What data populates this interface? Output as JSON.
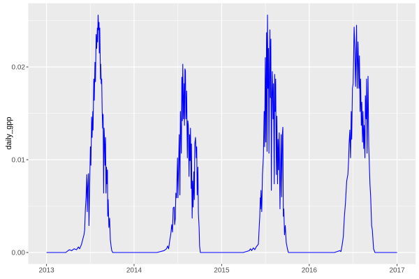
{
  "chart_data": {
    "type": "line",
    "title": "",
    "xlabel": "",
    "ylabel": "daily_gpp",
    "legend": "none",
    "theme": "ggplot2-grey",
    "x_unit": "days since 2013-01-01 (date axis)",
    "xlim_days": [
      -76,
      1538
    ],
    "ylim": [
      -0.0012,
      0.0269
    ],
    "x_ticks_days": [
      0,
      365,
      730,
      1095,
      1461
    ],
    "x_tick_labels": [
      "2013",
      "2014",
      "2015",
      "2016",
      "2017"
    ],
    "x_minor_ticks_days": [
      182.5,
      547.5,
      912.5,
      1278
    ],
    "y_ticks": [
      0,
      0.01,
      0.02
    ],
    "y_tick_labels": [
      "0.00",
      "0.01",
      "0.02"
    ],
    "y_minor_ticks": [
      0.005,
      0.015,
      0.025
    ],
    "grid": "major+minor",
    "colors": {
      "panel_background": "#EBEBEB",
      "grid_line": "#FFFFFF",
      "axis_text": "#4D4D4D",
      "axis_title": "#000000",
      "tick_mark": "#333333",
      "line": "#0000FF"
    },
    "series": [
      {
        "name": "daily_gpp",
        "color": "#0000FF",
        "points": [
          [
            0,
            0
          ],
          [
            25,
            0
          ],
          [
            55,
            0
          ],
          [
            80,
            0
          ],
          [
            95,
            0.0003
          ],
          [
            105,
            0.0002
          ],
          [
            115,
            0.0004
          ],
          [
            125,
            0.0003
          ],
          [
            133,
            0.0006
          ],
          [
            138,
            0.0004
          ],
          [
            143,
            0.0007
          ],
          [
            146,
            0.0009
          ],
          [
            152,
            0.0015
          ],
          [
            156,
            0.0019
          ],
          [
            159,
            0.0024
          ],
          [
            162,
            0.0047
          ],
          [
            165,
            0.006
          ],
          [
            168,
            0.0084
          ],
          [
            170,
            0.0044
          ],
          [
            172,
            0.007
          ],
          [
            175,
            0.0085
          ],
          [
            177,
            0.0029
          ],
          [
            180,
            0.0075
          ],
          [
            183,
            0.0114
          ],
          [
            185,
            0.0094
          ],
          [
            188,
            0.0146
          ],
          [
            190,
            0.0124
          ],
          [
            193,
            0.0152
          ],
          [
            194,
            0.0132
          ],
          [
            197,
            0.0187
          ],
          [
            199,
            0.0164
          ],
          [
            202,
            0.0205
          ],
          [
            204,
            0.0184
          ],
          [
            207,
            0.0235
          ],
          [
            209,
            0.022
          ],
          [
            212,
            0.0242
          ],
          [
            213,
            0.0227
          ],
          [
            215,
            0.0256
          ],
          [
            217,
            0.024
          ],
          [
            219,
            0.0248
          ],
          [
            220,
            0.0215
          ],
          [
            222,
            0.0242
          ],
          [
            225,
            0.0187
          ],
          [
            226,
            0.0203
          ],
          [
            228,
            0.0182
          ],
          [
            230,
            0.0187
          ],
          [
            232,
            0.0152
          ],
          [
            234,
            0.0134
          ],
          [
            236,
            0.0149
          ],
          [
            238,
            0.0064
          ],
          [
            240,
            0.0134
          ],
          [
            242,
            0.0119
          ],
          [
            244,
            0.0094
          ],
          [
            246,
            0.0124
          ],
          [
            248,
            0.0064
          ],
          [
            250,
            0.0092
          ],
          [
            252,
            0.0074
          ],
          [
            254,
            0.0089
          ],
          [
            255,
            0.0039
          ],
          [
            257,
            0.0057
          ],
          [
            260,
            0.0027
          ],
          [
            263,
            0.0037
          ],
          [
            266,
            0.0014
          ],
          [
            269,
            0.0007
          ],
          [
            272,
            0.0002
          ],
          [
            276,
            0
          ],
          [
            300,
            0
          ],
          [
            340,
            0
          ],
          [
            380,
            0
          ],
          [
            420,
            0
          ],
          [
            460,
            0
          ],
          [
            490,
            0.0002
          ],
          [
            500,
            0.0004
          ],
          [
            505,
            0.0007
          ],
          [
            509,
            0.0004
          ],
          [
            513,
            0.0012
          ],
          [
            518,
            0.002
          ],
          [
            522,
            0.003
          ],
          [
            525,
            0.0022
          ],
          [
            528,
            0.0048
          ],
          [
            532,
            0.0049
          ],
          [
            534,
            0.003
          ],
          [
            537,
            0.0037
          ],
          [
            539,
            0.0064
          ],
          [
            542,
            0.0059
          ],
          [
            546,
            0.0102
          ],
          [
            548,
            0.0059
          ],
          [
            553,
            0.0127
          ],
          [
            556,
            0.0062
          ],
          [
            558,
            0.0152
          ],
          [
            562,
            0.0107
          ],
          [
            564,
            0.0189
          ],
          [
            566,
            0.0142
          ],
          [
            568,
            0.0203
          ],
          [
            571,
            0.0144
          ],
          [
            574,
            0.0182
          ],
          [
            575,
            0.0137
          ],
          [
            577,
            0.0198
          ],
          [
            579,
            0.0196
          ],
          [
            581,
            0.0144
          ],
          [
            584,
            0.0174
          ],
          [
            587,
            0.0102
          ],
          [
            589,
            0.0142
          ],
          [
            591,
            0.0137
          ],
          [
            594,
            0.0082
          ],
          [
            596,
            0.0127
          ],
          [
            598,
            0.0099
          ],
          [
            600,
            0.0134
          ],
          [
            603,
            0.0069
          ],
          [
            604,
            0.0117
          ],
          [
            607,
            0.0037
          ],
          [
            609,
            0.0077
          ],
          [
            611,
            0.0049
          ],
          [
            614,
            0.0087
          ],
          [
            616,
            0.0057
          ],
          [
            618,
            0.0117
          ],
          [
            621,
            0.0124
          ],
          [
            624,
            0.0102
          ],
          [
            626,
            0.0114
          ],
          [
            628,
            0.0062
          ],
          [
            631,
            0.0092
          ],
          [
            633,
            0.0042
          ],
          [
            636,
            0.0027
          ],
          [
            638,
            0.0007
          ],
          [
            641,
            0
          ],
          [
            665,
            0
          ],
          [
            700,
            0
          ],
          [
            740,
            0
          ],
          [
            780,
            0
          ],
          [
            820,
            0
          ],
          [
            845,
            0.0002
          ],
          [
            850,
            0.0004
          ],
          [
            855,
            0.0002
          ],
          [
            862,
            0.0005
          ],
          [
            868,
            0.0003
          ],
          [
            874,
            0.0006
          ],
          [
            880,
            0.0008
          ],
          [
            883,
            0.0009
          ],
          [
            886,
            0.0025
          ],
          [
            889,
            0.004
          ],
          [
            891,
            0.0059
          ],
          [
            892,
            0.0047
          ],
          [
            894,
            0.0067
          ],
          [
            897,
            0.0044
          ],
          [
            900,
            0.0084
          ],
          [
            904,
            0.0104
          ],
          [
            907,
            0.0152
          ],
          [
            909,
            0.0114
          ],
          [
            912,
            0.021
          ],
          [
            914,
            0.0119
          ],
          [
            917,
            0.0237
          ],
          [
            919,
            0.0109
          ],
          [
            921,
            0.0256
          ],
          [
            923,
            0.0177
          ],
          [
            925,
            0.022
          ],
          [
            927,
            0.0107
          ],
          [
            929,
            0.0187
          ],
          [
            931,
            0.024
          ],
          [
            933,
            0.0167
          ],
          [
            935,
            0.023
          ],
          [
            937,
            0.0067
          ],
          [
            939,
            0.0167
          ],
          [
            941,
            0.0195
          ],
          [
            944,
            0.0144
          ],
          [
            946,
            0.0182
          ],
          [
            949,
            0.0074
          ],
          [
            951,
            0.0192
          ],
          [
            953,
            0.0152
          ],
          [
            955,
            0.0187
          ],
          [
            958,
            0.0084
          ],
          [
            960,
            0.0147
          ],
          [
            963,
            0.0074
          ],
          [
            965,
            0.0122
          ],
          [
            967,
            0.0089
          ],
          [
            970,
            0.0129
          ],
          [
            973,
            0.0047
          ],
          [
            976,
            0.0099
          ],
          [
            978,
            0.0127
          ],
          [
            980,
            0.006
          ],
          [
            983,
            0.0128
          ],
          [
            985,
            0.0135
          ],
          [
            987,
            0.0039
          ],
          [
            989,
            0.0047
          ],
          [
            992,
            0.0019
          ],
          [
            995,
            0.0029
          ],
          [
            999,
            0.0011
          ],
          [
            1004,
            0.0004
          ],
          [
            1008,
            0
          ],
          [
            1040,
            0
          ],
          [
            1080,
            0
          ],
          [
            1120,
            0
          ],
          [
            1160,
            0
          ],
          [
            1200,
            0
          ],
          [
            1222,
            0.0002
          ],
          [
            1227,
            0.0001
          ],
          [
            1232,
            0.0008
          ],
          [
            1237,
            0.0017
          ],
          [
            1241,
            0.0037
          ],
          [
            1246,
            0.0054
          ],
          [
            1251,
            0.0077
          ],
          [
            1256,
            0.0084
          ],
          [
            1259,
            0.0099
          ],
          [
            1261,
            0.0117
          ],
          [
            1264,
            0.0132
          ],
          [
            1267,
            0.0102
          ],
          [
            1270,
            0.0152
          ],
          [
            1272,
            0.0122
          ],
          [
            1275,
            0.0177
          ],
          [
            1278,
            0.0182
          ],
          [
            1282,
            0.0243
          ],
          [
            1285,
            0.022
          ],
          [
            1288,
            0.0179
          ],
          [
            1292,
            0.0245
          ],
          [
            1295,
            0.0177
          ],
          [
            1298,
            0.0227
          ],
          [
            1300,
            0.0207
          ],
          [
            1302,
            0.0177
          ],
          [
            1304,
            0.0212
          ],
          [
            1307,
            0.0152
          ],
          [
            1309,
            0.0187
          ],
          [
            1312,
            0.0137
          ],
          [
            1314,
            0.0162
          ],
          [
            1317,
            0.0119
          ],
          [
            1319,
            0.0152
          ],
          [
            1322,
            0.0112
          ],
          [
            1324,
            0.0137
          ],
          [
            1327,
            0.0102
          ],
          [
            1329,
            0.0169
          ],
          [
            1332,
            0.0144
          ],
          [
            1334,
            0.0187
          ],
          [
            1336,
            0.0107
          ],
          [
            1340,
            0.019
          ],
          [
            1343,
            0.0114
          ],
          [
            1348,
            0.0074
          ],
          [
            1351,
            0.006
          ],
          [
            1355,
            0.0029
          ],
          [
            1358,
            0.0024
          ],
          [
            1363,
            0.0004
          ],
          [
            1369,
            0
          ],
          [
            1400,
            0
          ],
          [
            1430,
            0
          ],
          [
            1461,
            0
          ]
        ]
      }
    ]
  }
}
